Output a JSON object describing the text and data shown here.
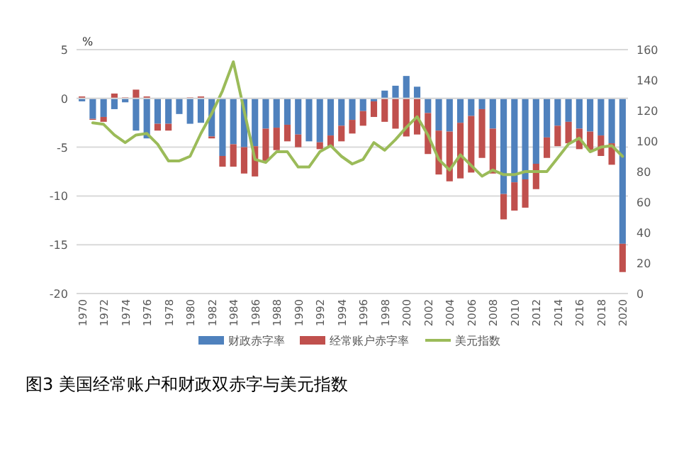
{
  "chart_data": {
    "type": "bar",
    "stacked": true,
    "title": "图3 美国经常账户和财政双赤字与美元指数",
    "ylabel": "%",
    "categories": [
      "1970",
      null,
      "1972",
      null,
      "1974",
      null,
      "1976",
      null,
      "1978",
      null,
      "1980",
      null,
      "1982",
      null,
      "1984",
      null,
      "1986",
      null,
      "1988",
      null,
      "1990",
      null,
      "1992",
      null,
      "1994",
      null,
      "1996",
      null,
      "1998",
      null,
      "2000",
      null,
      "2002",
      null,
      "2004",
      null,
      "2006",
      null,
      "2008",
      null,
      "2010",
      null,
      "2012",
      null,
      "2014",
      null,
      "2016",
      null,
      "2018",
      null,
      "2020"
    ],
    "series": [
      {
        "name": "财政赤字率",
        "color": "#4f81bd",
        "values": [
          -0.3,
          -2.1,
          -1.9,
          -1.1,
          -0.4,
          -3.3,
          -4.1,
          -2.6,
          -2.6,
          -1.6,
          -2.6,
          -2.5,
          -3.9,
          -5.9,
          -4.7,
          -5.0,
          -4.9,
          -3.1,
          -3.0,
          -2.7,
          -3.7,
          -4.4,
          -4.5,
          -3.8,
          -2.8,
          -2.2,
          -1.3,
          -0.3,
          0.8,
          1.3,
          2.3,
          1.2,
          -1.5,
          -3.3,
          -3.4,
          -2.5,
          -1.8,
          -1.1,
          -3.1,
          -9.8,
          -8.6,
          -8.3,
          -6.7,
          -4.0,
          -2.8,
          -2.4,
          -3.1,
          -3.4,
          -3.8,
          -4.6,
          -14.9
        ]
      },
      {
        "name": "经常账户赤字率",
        "color": "#c0504d",
        "values": [
          0.2,
          -0.1,
          -0.5,
          0.5,
          0.1,
          0.9,
          0.2,
          -0.7,
          -0.7,
          0.0,
          0.1,
          0.2,
          -0.2,
          -1.1,
          -2.3,
          -2.7,
          -3.1,
          -3.3,
          -2.3,
          -1.7,
          -1.3,
          0.0,
          -0.7,
          -1.2,
          -1.6,
          -1.4,
          -1.5,
          -1.6,
          -2.4,
          -3.1,
          -3.9,
          -3.7,
          -4.2,
          -4.5,
          -5.1,
          -5.7,
          -5.8,
          -5.0,
          -4.6,
          -2.6,
          -2.9,
          -2.9,
          -2.6,
          -2.1,
          -2.1,
          -2.2,
          -2.1,
          -1.9,
          -2.1,
          -2.2,
          -2.9
        ]
      },
      {
        "name": "美元指数",
        "type": "line",
        "axis": "y2",
        "color": "#9bbb59",
        "values": [
          null,
          112,
          111,
          104,
          99,
          104,
          105,
          98,
          87,
          87,
          90,
          105,
          118,
          133,
          152,
          120,
          88,
          86,
          93,
          93,
          83,
          83,
          93,
          97,
          90,
          85,
          88,
          99,
          94,
          101,
          109,
          116,
          104,
          88,
          81,
          91,
          84,
          77,
          81,
          78,
          78,
          80,
          80,
          80,
          89,
          98,
          102,
          93,
          96,
          97,
          90
        ]
      }
    ],
    "ylim": [
      -20,
      5
    ],
    "yticks": [
      -20,
      -15,
      -10,
      -5,
      0,
      5
    ],
    "y2lim": [
      0,
      160
    ],
    "y2ticks": [
      0,
      20,
      40,
      60,
      80,
      100,
      120,
      140,
      160
    ],
    "grid": "y",
    "legend": "bottom",
    "line_style": "solid",
    "marker": "none"
  }
}
